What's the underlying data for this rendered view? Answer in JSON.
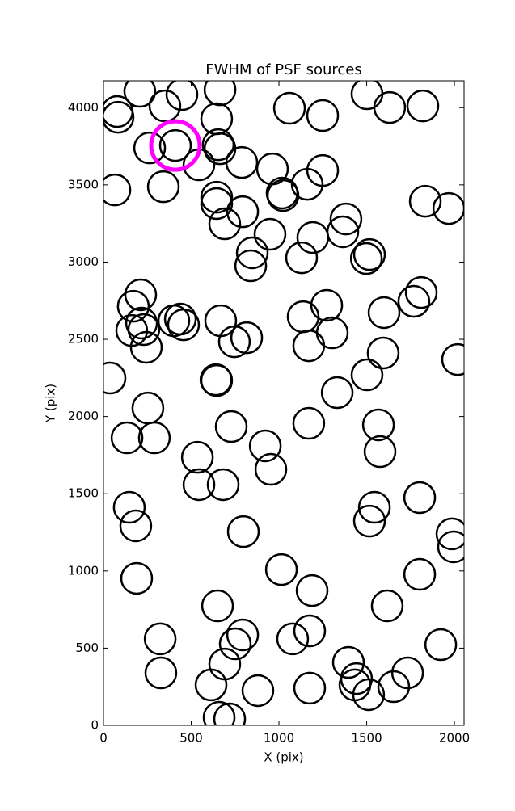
{
  "chart_data": {
    "type": "scatter",
    "title": "FWHM of PSF sources",
    "x_label": "X (pix)",
    "y_label": "Y (pix)",
    "xlim": [
      0,
      2055
    ],
    "ylim": [
      0,
      4174
    ],
    "xticks": [
      0,
      500,
      1000,
      1500,
      2000
    ],
    "yticks": [
      0,
      500,
      1000,
      1500,
      2000,
      2500,
      3000,
      3500,
      4000
    ],
    "grid": false,
    "series": [
      {
        "color": "#000000",
        "x": [
          207,
          78,
          83,
          350,
          447,
          664,
          645,
          263,
          410,
          544,
          654,
          664,
          788,
          65,
          341,
          645,
          645,
          691,
          793,
          963,
          1018,
          1023,
          1060,
          1249,
          1161,
          1249,
          1502,
          1631,
          1820,
          949,
          1193,
          1382,
          1364,
          1516,
          1498,
          1968,
          848,
          839,
          1129,
          1834,
          212,
          170,
          161,
          217,
          230,
          244,
          401,
          438,
          456,
          668,
          746,
          816,
          37,
          253,
          641,
          645,
          134,
          290,
          728,
          1138,
          1272,
          1170,
          1304,
          1769,
          1811,
          1599,
          1594,
          2018,
          1502,
          1332,
          1170,
          1567,
          1576,
          535,
          544,
          682,
          922,
          954,
          147,
          184,
          189,
          797,
          1014,
          1189,
          1544,
          1516,
          1802,
          1986,
          1995,
          1802,
          650,
          1617,
          323,
          327,
          751,
          793,
          1078,
          1175,
          613,
          691,
          880,
          1175,
          1396,
          1442,
          1433,
          1511,
          1733,
          1654,
          1922,
          659,
          719
        ],
        "y": [
          4106,
          3975,
          3938,
          4011,
          4085,
          4116,
          3928,
          3739,
          3755,
          3630,
          3760,
          3734,
          3645,
          3467,
          3488,
          3420,
          3379,
          3248,
          3326,
          3603,
          3447,
          3431,
          3996,
          3949,
          3504,
          3593,
          4090,
          4001,
          4011,
          3180,
          3159,
          3279,
          3196,
          3049,
          3023,
          3347,
          3060,
          2976,
          3028,
          3394,
          2788,
          2714,
          2557,
          2605,
          2563,
          2448,
          2620,
          2631,
          2594,
          2620,
          2484,
          2510,
          2249,
          2055,
          2238,
          2233,
          1862,
          1862,
          1935,
          2646,
          2720,
          2458,
          2542,
          2746,
          2803,
          2673,
          2411,
          2369,
          2270,
          2155,
          1956,
          1946,
          1773,
          1736,
          1559,
          1559,
          1810,
          1658,
          1412,
          1292,
          952,
          1255,
          1009,
          873,
          1412,
          1323,
          1475,
          1240,
          1156,
          978,
          774,
          774,
          560,
          340,
          528,
          586,
          560,
          612,
          262,
          397,
          225,
          241,
          408,
          303,
          262,
          199,
          340,
          251,
          523,
          52,
          42
        ]
      },
      {
        "color": "#ff00ff",
        "x": [
          410
        ],
        "y": [
          3755
        ]
      }
    ]
  }
}
